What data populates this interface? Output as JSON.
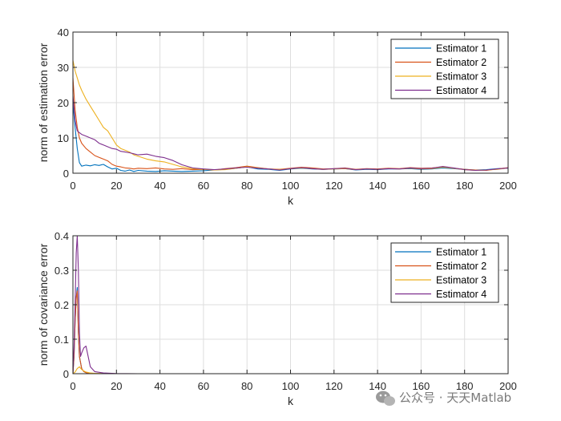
{
  "chart_data": [
    {
      "type": "line",
      "xlabel": "k",
      "ylabel": "norm of estimation error",
      "xlim": [
        0,
        200
      ],
      "ylim": [
        0,
        40
      ],
      "xticks": [
        0,
        20,
        40,
        60,
        80,
        100,
        120,
        140,
        160,
        180,
        200
      ],
      "yticks": [
        0,
        10,
        20,
        30,
        40
      ],
      "grid": true,
      "legend_position": "top-right",
      "series": [
        {
          "name": "Estimator 1",
          "color": "#0072BD",
          "x": [
            0,
            1,
            2,
            3,
            4,
            6,
            8,
            10,
            12,
            14,
            16,
            18,
            20,
            22,
            24,
            26,
            28,
            30,
            34,
            38,
            42,
            46,
            50,
            55,
            60,
            65,
            70,
            75,
            80,
            85,
            90,
            95,
            100,
            105,
            110,
            115,
            120,
            125,
            130,
            135,
            140,
            145,
            150,
            155,
            160,
            165,
            170,
            175,
            180,
            185,
            190,
            195,
            200
          ],
          "y": [
            20,
            13,
            7,
            3,
            2,
            2.3,
            2.1,
            2.4,
            2.2,
            2.5,
            1.8,
            1.2,
            1.4,
            0.8,
            0.6,
            0.9,
            0.5,
            0.8,
            0.6,
            0.5,
            0.7,
            0.6,
            0.5,
            0.6,
            0.7,
            0.9,
            1.1,
            1.4,
            1.8,
            1.2,
            1.1,
            0.8,
            1.2,
            1.4,
            1.2,
            1.1,
            1.2,
            1.3,
            0.9,
            1.1,
            1.0,
            1.2,
            1.2,
            1.3,
            1.1,
            1.2,
            1.5,
            1.3,
            1.1,
            0.9,
            1.0,
            1.3,
            1.4
          ]
        },
        {
          "name": "Estimator 2",
          "color": "#D95319",
          "x": [
            0,
            1,
            2,
            3,
            4,
            6,
            8,
            10,
            12,
            14,
            16,
            18,
            20,
            22,
            24,
            26,
            28,
            30,
            34,
            38,
            42,
            46,
            50,
            55,
            60,
            65,
            70,
            75,
            80,
            85,
            90,
            95,
            100,
            105,
            110,
            115,
            120,
            125,
            130,
            135,
            140,
            145,
            150,
            155,
            160,
            165,
            170,
            175,
            180,
            185,
            190,
            195,
            200
          ],
          "y": [
            27,
            18,
            13,
            10,
            8.5,
            7,
            6,
            5,
            4.5,
            4,
            3.5,
            2.5,
            2,
            1.8,
            1.5,
            1.4,
            1.2,
            1.4,
            1.3,
            1.5,
            1.2,
            1.1,
            1.3,
            1.0,
            1.1,
            0.9,
            1.3,
            1.6,
            2.0,
            1.6,
            1.2,
            1.1,
            1.4,
            1.7,
            1.5,
            1.2,
            1.3,
            1.5,
            1.1,
            1.3,
            1.2,
            1.4,
            1.3,
            1.6,
            1.4,
            1.5,
            1.8,
            1.4,
            1.1,
            0.9,
            0.8,
            1.2,
            1.6
          ]
        },
        {
          "name": "Estimator 3",
          "color": "#EDB120",
          "x": [
            0,
            1,
            2,
            3,
            4,
            6,
            8,
            10,
            12,
            14,
            16,
            18,
            20,
            22,
            24,
            26,
            28,
            30,
            34,
            38,
            42,
            46,
            50,
            55,
            60,
            65,
            70,
            75,
            80,
            85,
            90,
            95,
            100,
            105,
            110,
            115,
            120,
            125,
            130,
            135,
            140,
            145,
            150,
            155,
            160,
            165,
            170,
            175,
            180,
            185,
            190,
            195,
            200
          ],
          "y": [
            32,
            29,
            27,
            25,
            23.5,
            21,
            19,
            17,
            15,
            13,
            12,
            10,
            8,
            7,
            6.5,
            6,
            5.2,
            4.8,
            4,
            3.5,
            3.2,
            2.5,
            1.8,
            1.3,
            1.1,
            0.9,
            1.0,
            1.4,
            1.8,
            1.5,
            1.2,
            1.0,
            1.3,
            1.5,
            1.3,
            1.1,
            1.2,
            1.3,
            1.0,
            1.2,
            1.1,
            1.3,
            1.2,
            1.4,
            1.2,
            1.3,
            1.7,
            1.4,
            1.0,
            0.8,
            0.9,
            1.1,
            1.5
          ]
        },
        {
          "name": "Estimator 4",
          "color": "#7E2F8E",
          "x": [
            0,
            1,
            2,
            3,
            4,
            6,
            8,
            10,
            12,
            14,
            16,
            18,
            20,
            22,
            24,
            26,
            28,
            30,
            34,
            38,
            42,
            46,
            50,
            55,
            60,
            65,
            70,
            75,
            80,
            85,
            90,
            95,
            100,
            105,
            110,
            115,
            120,
            125,
            130,
            135,
            140,
            145,
            150,
            155,
            160,
            165,
            170,
            175,
            180,
            185,
            190,
            195,
            200
          ],
          "y": [
            22,
            15,
            12,
            11.5,
            11,
            10.5,
            10,
            9.5,
            8.5,
            8,
            7.5,
            7,
            6.8,
            6.2,
            6,
            5.8,
            5.5,
            5.2,
            5.4,
            4.8,
            4.4,
            3.6,
            2.4,
            1.5,
            1.2,
            1.0,
            1.2,
            1.5,
            1.7,
            1.4,
            1.2,
            0.9,
            1.3,
            1.6,
            1.3,
            1.1,
            1.3,
            1.4,
            1.0,
            1.2,
            1.1,
            1.3,
            1.2,
            1.5,
            1.3,
            1.4,
            1.9,
            1.5,
            1.0,
            0.8,
            0.9,
            1.2,
            1.5
          ]
        }
      ]
    },
    {
      "type": "line",
      "xlabel": "k",
      "ylabel": "norm of covariance error",
      "xlim": [
        0,
        200
      ],
      "ylim": [
        0,
        0.4
      ],
      "xticks": [
        0,
        20,
        40,
        60,
        80,
        100,
        120,
        140,
        160,
        180,
        200
      ],
      "yticks": [
        0,
        0.1,
        0.2,
        0.3,
        0.4
      ],
      "grid": true,
      "legend_position": "top-right",
      "series": [
        {
          "name": "Estimator 1",
          "color": "#0072BD",
          "x": [
            0,
            0.5,
            1,
            1.5,
            2,
            2.5,
            3,
            4,
            5,
            6,
            8,
            10,
            14,
            20,
            30,
            200
          ],
          "y": [
            0,
            0.05,
            0.15,
            0.22,
            0.25,
            0.12,
            0.05,
            0.015,
            0.006,
            0.003,
            0.001,
            0.0005,
            0.0002,
            0.0001,
            0,
            0
          ]
        },
        {
          "name": "Estimator 2",
          "color": "#D95319",
          "x": [
            0,
            0.5,
            1,
            1.5,
            2,
            2.5,
            3,
            4,
            5,
            6,
            8,
            10,
            14,
            20,
            30,
            200
          ],
          "y": [
            0,
            0.05,
            0.15,
            0.22,
            0.24,
            0.12,
            0.05,
            0.015,
            0.006,
            0.003,
            0.001,
            0.0005,
            0.0002,
            0.0001,
            0,
            0
          ]
        },
        {
          "name": "Estimator 3",
          "color": "#EDB120",
          "x": [
            0,
            1,
            2,
            3,
            4,
            5,
            6,
            8,
            10,
            14,
            20,
            30,
            200
          ],
          "y": [
            0,
            0.005,
            0.015,
            0.02,
            0.012,
            0.008,
            0.005,
            0.002,
            0.001,
            0.0004,
            0.0001,
            0,
            0
          ]
        },
        {
          "name": "Estimator 4",
          "color": "#7E2F8E",
          "x": [
            0,
            0.5,
            1,
            1.5,
            2,
            2.5,
            3,
            3.5,
            4,
            5,
            6,
            7,
            8,
            10,
            14,
            20,
            30,
            200
          ],
          "y": [
            0,
            0.08,
            0.2,
            0.35,
            0.41,
            0.3,
            0.12,
            0.05,
            0.06,
            0.075,
            0.08,
            0.05,
            0.02,
            0.006,
            0.002,
            0.0005,
            0,
            0
          ]
        }
      ]
    }
  ],
  "watermark": {
    "text": "公众号 · 天天Matlab",
    "icon": "wechat-icon"
  }
}
